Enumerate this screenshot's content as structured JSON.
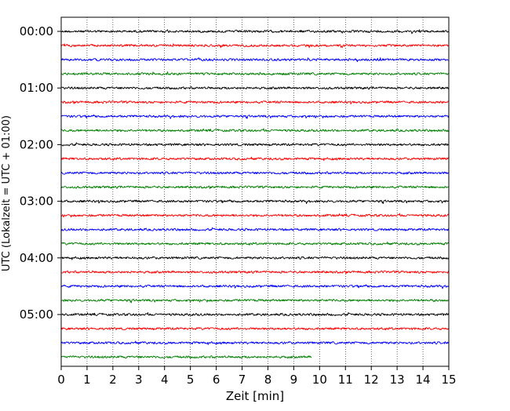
{
  "chart_data": {
    "type": "line",
    "xlabel": "Zeit  [min]",
    "ylabel": "UTC (Lokalzeit = UTC + 01:00)",
    "xlim": [
      0,
      15
    ],
    "x_ticks": [
      0,
      1,
      2,
      3,
      4,
      5,
      6,
      7,
      8,
      9,
      10,
      11,
      12,
      13,
      14,
      15
    ],
    "x_tick_labels": [
      "0",
      "1",
      "2",
      "3",
      "4",
      "5",
      "6",
      "7",
      "8",
      "9",
      "10",
      "11",
      "12",
      "13",
      "14",
      "15"
    ],
    "y_tick_labels": [
      "00:00",
      "01:00",
      "02:00",
      "03:00",
      "04:00",
      "05:00"
    ],
    "y_tick_row_index": [
      0,
      4,
      8,
      12,
      16,
      20
    ],
    "minutes_per_row": 15,
    "grid": "vertical dotted at each minute",
    "colors": [
      "#000000",
      "#ff0000",
      "#0000ff",
      "#008000"
    ],
    "series": [
      {
        "start": "00:00",
        "duration_min": 15
      },
      {
        "start": "00:15",
        "duration_min": 15
      },
      {
        "start": "00:30",
        "duration_min": 15
      },
      {
        "start": "00:45",
        "duration_min": 15
      },
      {
        "start": "01:00",
        "duration_min": 15
      },
      {
        "start": "01:15",
        "duration_min": 15
      },
      {
        "start": "01:30",
        "duration_min": 15
      },
      {
        "start": "01:45",
        "duration_min": 15
      },
      {
        "start": "02:00",
        "duration_min": 15
      },
      {
        "start": "02:15",
        "duration_min": 15
      },
      {
        "start": "02:30",
        "duration_min": 15
      },
      {
        "start": "02:45",
        "duration_min": 15
      },
      {
        "start": "03:00",
        "duration_min": 15
      },
      {
        "start": "03:15",
        "duration_min": 15
      },
      {
        "start": "03:30",
        "duration_min": 15
      },
      {
        "start": "03:45",
        "duration_min": 15
      },
      {
        "start": "04:00",
        "duration_min": 15
      },
      {
        "start": "04:15",
        "duration_min": 15
      },
      {
        "start": "04:30",
        "duration_min": 15
      },
      {
        "start": "04:45",
        "duration_min": 15
      },
      {
        "start": "05:00",
        "duration_min": 15
      },
      {
        "start": "05:15",
        "duration_min": 15
      },
      {
        "start": "05:30",
        "duration_min": 15
      },
      {
        "start": "05:45",
        "duration_min": 9.7
      }
    ]
  }
}
